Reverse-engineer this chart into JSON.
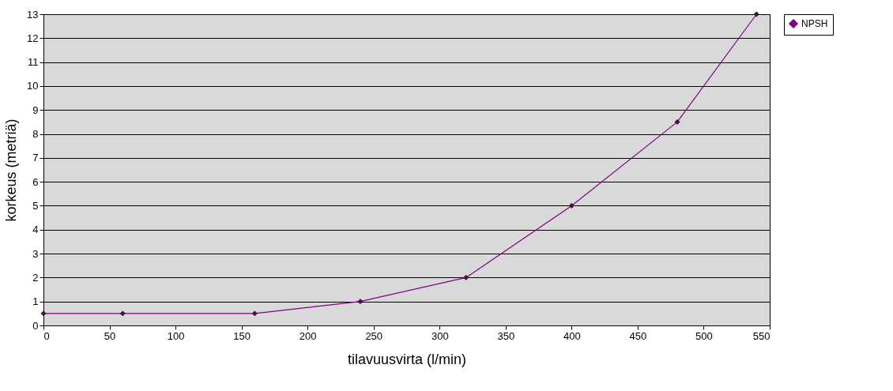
{
  "chart_data": {
    "type": "line",
    "xlabel": "tilavuusvirta (l/min)",
    "ylabel": "korkeus (metriä)",
    "x": [
      0,
      60,
      160,
      240,
      320,
      400,
      480,
      540
    ],
    "series": [
      {
        "name": "NPSH",
        "color": "#800080",
        "values": [
          0.5,
          0.5,
          0.5,
          1,
          2,
          5,
          8.5,
          13
        ]
      }
    ],
    "xlim": [
      0,
      550
    ],
    "xticks": [
      0,
      50,
      100,
      150,
      200,
      250,
      300,
      350,
      400,
      450,
      500,
      550
    ],
    "ylim": [
      0,
      13
    ],
    "yticks": [
      0,
      1,
      2,
      3,
      4,
      5,
      6,
      7,
      8,
      9,
      10,
      11,
      12,
      13
    ],
    "grid": "y",
    "legend": "right",
    "marker": "diamond",
    "line_style": "solid"
  }
}
